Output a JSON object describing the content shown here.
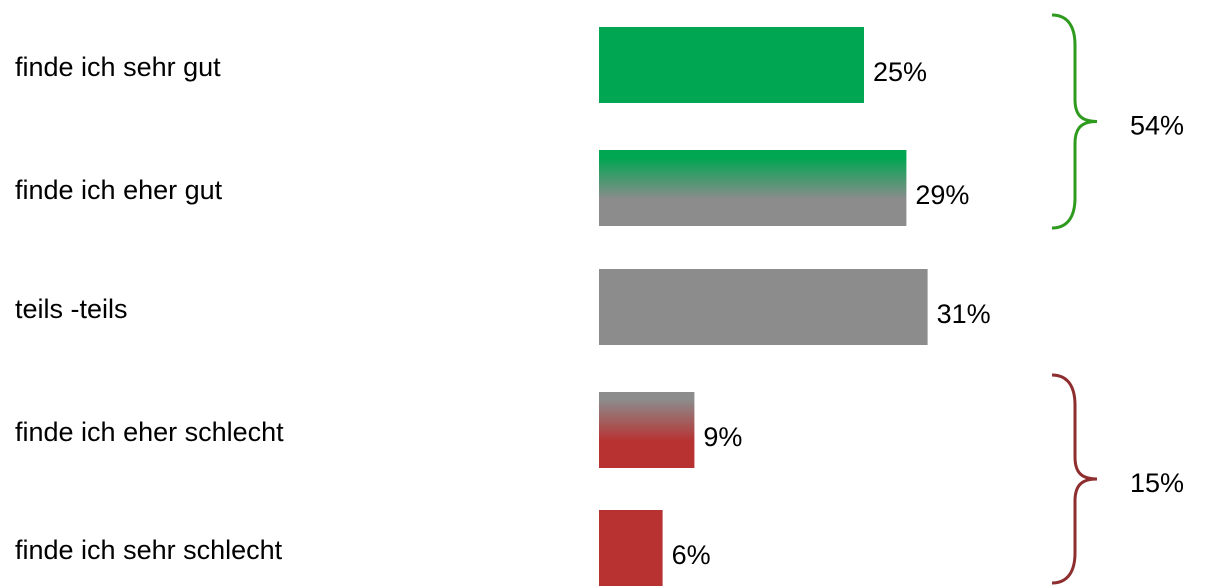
{
  "chart_data": {
    "type": "bar",
    "orientation": "horizontal",
    "categories": [
      "finde ich sehr gut",
      "finde ich eher gut",
      "teils -teils",
      "finde ich eher schlecht",
      "finde ich sehr schlecht"
    ],
    "values": [
      25,
      29,
      31,
      9,
      6
    ],
    "value_labels": [
      "25%",
      "29%",
      "31%",
      "9%",
      "6%"
    ],
    "colors": [
      [
        "#00a651"
      ],
      [
        "#00a651",
        "#8c8c8c"
      ],
      [
        "#8c8c8c"
      ],
      [
        "#8c8c8c",
        "#b83232"
      ],
      [
        "#b83232"
      ]
    ],
    "annotations": [
      {
        "text": "54%",
        "color": "#2e9a1e"
      },
      {
        "text": "15%",
        "color": "#8e2e2e"
      }
    ]
  }
}
